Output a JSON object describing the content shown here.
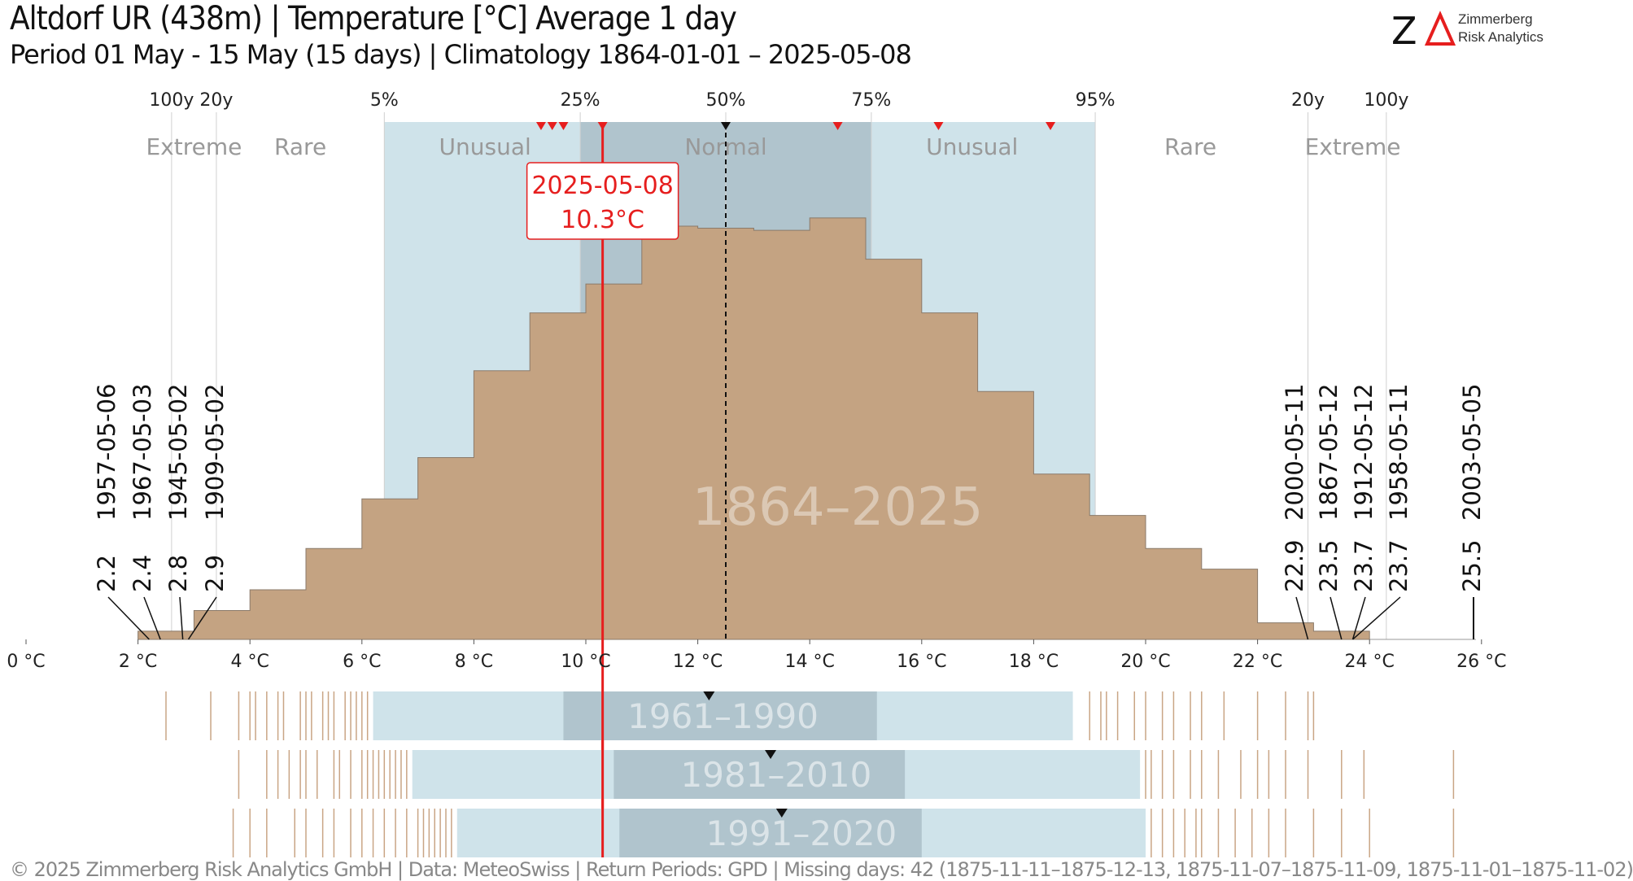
{
  "header": {
    "title": "Altdorf  UR (438m) | Temperature [°C] Average 1 day",
    "subtitle": "Period 01 May - 15 May (15 days) | Climatology 1864-01-01 – 2025-05-08",
    "logo_mark": "ZΔ",
    "logo_line1": "Zimmerberg",
    "logo_line2": "Risk Analytics"
  },
  "footer": "©  2025 Zimmerberg Risk Analytics GmbH | Data: MeteoSwiss | Return Periods: GPD | Missing days: 42 (1875-11-11–1875-12-13, 1875-11-07–1875-11-09, 1875-11-01–1875-11-02)",
  "colors": {
    "histogram": "#c4a382",
    "normal_band": "#b0c4cd",
    "unusual_band": "#cfe3ea",
    "highlight": "#e61e1e",
    "text_grey": "#999999",
    "strip_line": "#c9a585"
  },
  "chart_data": {
    "type": "bar",
    "xlabel_unit": "°C",
    "xlim": [
      0,
      26
    ],
    "x_ticks": [
      0,
      2,
      4,
      6,
      8,
      10,
      12,
      14,
      16,
      18,
      20,
      22,
      24,
      26
    ],
    "x_tick_labels": [
      "0 °C",
      "2 °C",
      "4 °C",
      "6 °C",
      "8 °C",
      "10 °C",
      "12 °C",
      "14 °C",
      "16 °C",
      "18 °C",
      "20 °C",
      "22 °C",
      "24 °C",
      "26 °C"
    ],
    "histogram": {
      "bin_edges": [
        2,
        3,
        4,
        5,
        6,
        7,
        8,
        9,
        10,
        11,
        12,
        13,
        14,
        15,
        16,
        17,
        18,
        19,
        20,
        21,
        22,
        23,
        24
      ],
      "relative_heights": [
        0.02,
        0.07,
        0.12,
        0.22,
        0.34,
        0.44,
        0.65,
        0.79,
        0.86,
        1.0,
        0.995,
        0.99,
        1.02,
        0.92,
        0.79,
        0.6,
        0.4,
        0.3,
        0.22,
        0.17,
        0.04,
        0.02
      ]
    },
    "watermark": "1864–2025",
    "percentile_labels": [
      {
        "label": "100y",
        "value": 2.6
      },
      {
        "label": "20y",
        "value": 3.4
      },
      {
        "label": "5%",
        "value": 6.4
      },
      {
        "label": "25%",
        "value": 9.9
      },
      {
        "label": "50%",
        "value": 12.5
      },
      {
        "label": "75%",
        "value": 15.1
      },
      {
        "label": "95%",
        "value": 19.1
      },
      {
        "label": "20y",
        "value": 22.9
      },
      {
        "label": "100y",
        "value": 24.3
      }
    ],
    "zones": [
      {
        "label": "Extreme",
        "center": 3.0
      },
      {
        "label": "Rare",
        "center": 4.9
      },
      {
        "label": "Unusual",
        "center": 8.2
      },
      {
        "label": "Normal",
        "center": 12.5
      },
      {
        "label": "Unusual",
        "center": 16.9
      },
      {
        "label": "Rare",
        "center": 20.8
      },
      {
        "label": "Extreme",
        "center": 23.7
      }
    ],
    "unusual_range": [
      6.4,
      19.1
    ],
    "normal_range": [
      9.9,
      15.1
    ],
    "median": 12.5,
    "current": {
      "date": "2025-05-08",
      "value_label": "10.3°C",
      "value": 10.3
    },
    "red_markers": [
      9.2,
      9.4,
      9.6,
      10.3,
      14.5,
      16.3,
      18.3
    ],
    "extremes_low": [
      {
        "date": "1957-05-06",
        "value": 2.2
      },
      {
        "date": "1967-05-03",
        "value": 2.4
      },
      {
        "date": "1945-05-02",
        "value": 2.8
      },
      {
        "date": "1909-05-02",
        "value": 2.9
      }
    ],
    "extremes_high": [
      {
        "date": "2000-05-11",
        "value": 22.9
      },
      {
        "date": "1867-05-12",
        "value": 23.5
      },
      {
        "date": "1912-05-12",
        "value": 23.7
      },
      {
        "date": "1958-05-11",
        "value": 23.7
      },
      {
        "date": "2003-05-05",
        "value": 25.5
      }
    ],
    "periods": [
      {
        "label": "1961–1990",
        "unusual": [
          6.2,
          18.7
        ],
        "normal": [
          9.6,
          15.2
        ],
        "median": 12.2,
        "ticks": [
          2.5,
          3.3,
          3.8,
          4.0,
          4.1,
          4.3,
          4.5,
          4.6,
          4.9,
          5.0,
          5.1,
          5.3,
          5.4,
          5.5,
          5.7,
          5.8,
          5.9,
          6.0,
          6.1,
          19.0,
          19.2,
          19.3,
          19.5,
          19.8,
          20.0,
          20.3,
          20.5,
          20.8,
          21.0,
          21.4,
          22.0,
          22.5,
          22.9,
          23.0
        ]
      },
      {
        "label": "1981–2010",
        "unusual": [
          6.9,
          19.9
        ],
        "normal": [
          10.5,
          15.7
        ],
        "median": 13.3,
        "ticks": [
          3.8,
          4.3,
          4.5,
          4.7,
          4.9,
          5.0,
          5.2,
          5.5,
          5.6,
          5.8,
          6.0,
          6.1,
          6.2,
          6.3,
          6.4,
          6.5,
          6.6,
          6.7,
          6.8,
          20.0,
          20.1,
          20.3,
          20.5,
          20.8,
          21.0,
          21.3,
          21.7,
          22.0,
          22.2,
          22.5,
          22.9,
          23.5,
          23.9,
          25.5
        ]
      },
      {
        "label": "1991–2020",
        "unusual": [
          7.7,
          20.0
        ],
        "normal": [
          10.6,
          16.0
        ],
        "median": 13.5,
        "ticks": [
          3.7,
          4.0,
          4.3,
          4.8,
          5.0,
          5.3,
          5.5,
          5.8,
          6.0,
          6.2,
          6.4,
          6.6,
          6.8,
          7.0,
          7.1,
          7.2,
          7.3,
          7.4,
          7.5,
          7.6,
          20.1,
          20.3,
          20.5,
          20.7,
          20.9,
          21.0,
          21.3,
          21.6,
          21.9,
          22.2,
          22.5,
          23.0,
          23.5,
          24.0,
          25.5
        ]
      }
    ]
  }
}
